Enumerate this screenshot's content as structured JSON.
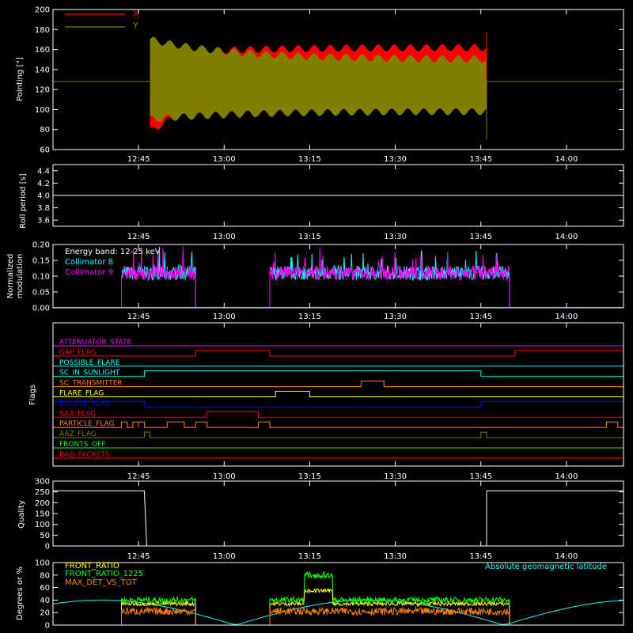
{
  "colors": {
    "axis": "#ffffff",
    "x_pointing": "#ff0000",
    "y_pointing": "#808000",
    "collimator8": "#00ffff",
    "collimator9": "#ff00ff",
    "front_ratio": "#ffff00",
    "front_ratio_1225": "#00ff00",
    "max_det_vs_tot": "#ff8000",
    "geomag": "#00ffff"
  },
  "chart_data": [
    {
      "id": "pointing",
      "type": "area",
      "ylabel": "Pointing [\"]",
      "ylim": [
        60,
        200
      ],
      "yticks": [
        60,
        80,
        100,
        120,
        140,
        160,
        180,
        200
      ],
      "xlim": [
        "12:30",
        "14:10"
      ],
      "xticks": [
        "12:45",
        "13:00",
        "13:15",
        "13:30",
        "13:45",
        "14:00"
      ],
      "legend": "top-left",
      "baseline": 128,
      "data_start": "12:47",
      "data_end": "13:46",
      "series": [
        {
          "name": "X",
          "upper_start": 155,
          "upper_end": 162,
          "lower_start": 78,
          "lower_end": 135,
          "end_spike": 178
        },
        {
          "name": "Y",
          "upper_start": 170,
          "upper_end": 150,
          "lower_start": 90,
          "lower_end": 98,
          "end_spike": 70
        }
      ]
    },
    {
      "id": "roll",
      "type": "line",
      "ylabel": "Roll period [s]",
      "ylim": [
        3.5,
        4.5
      ],
      "yticks": [
        "3.6",
        "3.8",
        "4.0",
        "4.2",
        "4.4"
      ],
      "xticks": [
        "12:45",
        "13:00",
        "13:15",
        "13:30",
        "13:45",
        "14:00"
      ],
      "value": 4.0
    },
    {
      "id": "modulation",
      "type": "line",
      "ylabel": [
        "Normalized",
        "modulation"
      ],
      "ylim": [
        0,
        0.2
      ],
      "yticks": [
        "0.00",
        "0.05",
        "0.10",
        "0.15",
        "0.20"
      ],
      "xticks": [
        "12:45",
        "13:00",
        "13:15",
        "13:30",
        "13:45",
        "14:00"
      ],
      "legend": [
        "Energy band: 12-25 keV",
        "Collimator 8",
        "Collimator 9"
      ],
      "segments": [
        [
          "12:42",
          "12:55"
        ],
        [
          "13:08",
          "13:50"
        ]
      ],
      "mean": 0.11
    },
    {
      "id": "flags",
      "type": "line",
      "ylabel": "Flags",
      "xticks": [
        "12:45",
        "13:00",
        "13:15",
        "13:30",
        "13:45",
        "14:00"
      ],
      "rows": [
        {
          "name": "ATTENUATOR_STATE",
          "color": "#ff00ff",
          "on": []
        },
        {
          "name": "GAP_FLAG",
          "color": "#ff0000",
          "on": [
            [
              "12:55",
              "13:08"
            ],
            [
              "13:51",
              "14:10"
            ]
          ]
        },
        {
          "name": "POSSIBLE_FLARE",
          "color": "#00ffff",
          "on": []
        },
        {
          "name": "SC_IN_SUNLIGHT",
          "color": "#00ffff",
          "on": [
            [
              "12:46",
              "13:45"
            ]
          ]
        },
        {
          "name": "SC_TRANSMITTER",
          "color": "#ff8000",
          "on": [
            [
              "13:24",
              "13:28"
            ]
          ]
        },
        {
          "name": "FLARE_FLAG",
          "color": "#ffff00",
          "on": [
            [
              "13:09",
              "13:15"
            ]
          ]
        },
        {
          "name": "ECLIPSE_FLAG",
          "color": "#0000ff",
          "on": [
            [
              "12:30",
              "12:46"
            ],
            [
              "13:45",
              "14:10"
            ]
          ]
        },
        {
          "name": "SAA_FLAG",
          "color": "#ff0000",
          "on": [
            [
              "12:57",
              "13:06"
            ]
          ]
        },
        {
          "name": "PARTICLE_FLAG",
          "color": "#ff8000",
          "on": [
            [
              "12:42",
              "12:43"
            ],
            [
              "12:44",
              "12:45"
            ],
            [
              "12:45",
              "12:46"
            ],
            [
              "12:50",
              "12:53"
            ],
            [
              "12:55",
              "12:57"
            ],
            [
              "13:06",
              "13:08"
            ],
            [
              "14:07",
              "14:09"
            ]
          ]
        },
        {
          "name": "AAZ_FLAG",
          "color": "#808000",
          "on": [
            [
              "12:46",
              "12:47"
            ],
            [
              "13:45",
              "13:46"
            ]
          ]
        },
        {
          "name": "FRONTS_OFF",
          "color": "#00ff00",
          "on": []
        },
        {
          "name": "BAD_PACKETS",
          "color": "#ff0000",
          "on": []
        }
      ]
    },
    {
      "id": "quality",
      "type": "line",
      "ylabel": "Quality",
      "ylim": [
        0,
        300
      ],
      "yticks": [
        "0",
        "50",
        "100",
        "150",
        "200",
        "250",
        "300"
      ],
      "xticks": [
        "12:45",
        "13:00",
        "13:15",
        "13:30",
        "13:45",
        "14:00"
      ],
      "on_value": 255,
      "on": [
        [
          "12:30",
          "12:46"
        ],
        [
          "13:46",
          "14:10"
        ]
      ]
    },
    {
      "id": "ratios",
      "type": "line",
      "ylabel": "Degrees or %",
      "ylim": [
        0,
        100
      ],
      "yticks": [
        "0",
        "20",
        "40",
        "60",
        "80",
        "100"
      ],
      "legend": [
        "FRONT_RATIO",
        "FRONT_RATIO_1225",
        "MAX_DET_VS_TOT"
      ],
      "annotation": "Absolute geomagnetic latitude",
      "segments": [
        [
          "12:42",
          "12:55"
        ],
        [
          "13:08",
          "13:50"
        ]
      ]
    }
  ]
}
